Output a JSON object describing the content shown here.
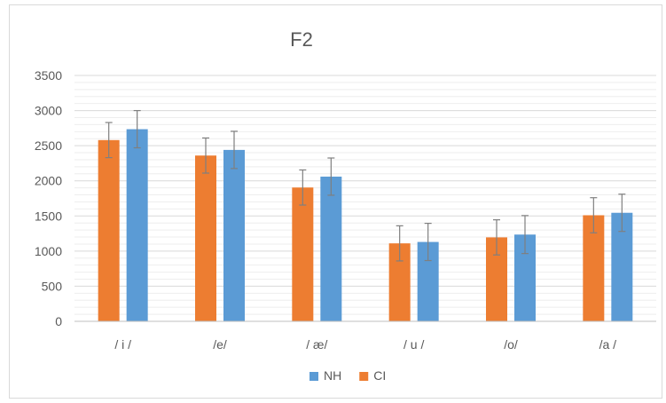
{
  "chart_data": {
    "type": "bar",
    "title": "F2",
    "xlabel": "",
    "ylabel": "",
    "ylim": [
      0,
      3500
    ],
    "yticks": [
      0,
      500,
      1000,
      1500,
      2000,
      2500,
      3000,
      3500
    ],
    "grid": true,
    "error_bars": true,
    "legend_position": "bottom",
    "legend_order": [
      "NH",
      "CI"
    ],
    "categories": [
      "/ i /",
      "/e/",
      "/ æ/",
      "/ u /",
      "/o/",
      "/a /"
    ],
    "series": [
      {
        "name": "CI",
        "color": "#ED7D31",
        "values": [
          2580,
          2360,
          1905,
          1110,
          1195,
          1510
        ],
        "error": [
          250,
          250,
          250,
          250,
          250,
          250
        ]
      },
      {
        "name": "NH",
        "color": "#5B9BD5",
        "values": [
          2735,
          2440,
          2060,
          1130,
          1235,
          1545
        ],
        "error": [
          265,
          265,
          265,
          265,
          270,
          265
        ]
      }
    ]
  }
}
